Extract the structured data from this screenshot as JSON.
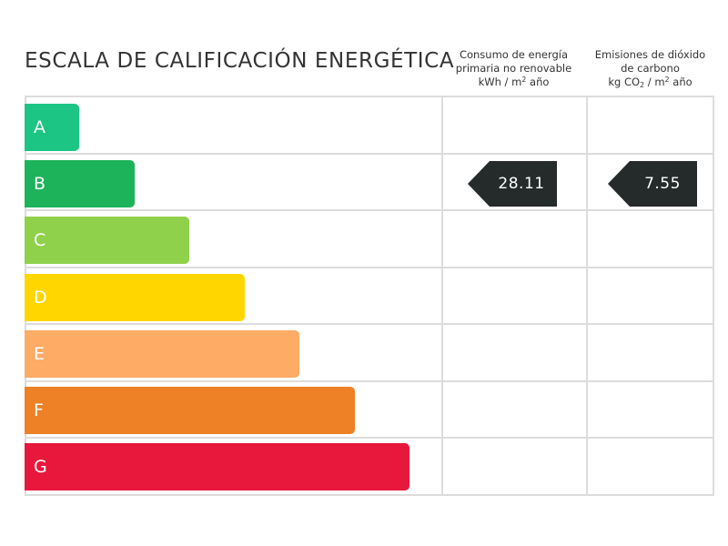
{
  "title": "ESCALA DE CALIFICACIÓN ENERGÉTICA",
  "columns": [
    {
      "line1": "Consumo de energía",
      "line2": "primaria no renovable",
      "unit_main": "kWh / m",
      "unit_sup": "2",
      "unit_tail": " año"
    },
    {
      "line1": "Emisiones de dióxido",
      "line2": "de carbono",
      "unit_main": "kg CO",
      "unit_sub": "2",
      "unit_mid": " / m",
      "unit_sup": "2",
      "unit_tail": " año"
    }
  ],
  "grades": [
    {
      "label": "A",
      "color": "#1cc584"
    },
    {
      "label": "B",
      "color": "#1db35a"
    },
    {
      "label": "C",
      "color": "#8fd14b"
    },
    {
      "label": "D",
      "color": "#ffd600"
    },
    {
      "label": "E",
      "color": "#fdab65"
    },
    {
      "label": "F",
      "color": "#ee8026"
    },
    {
      "label": "G",
      "color": "#e8173c"
    }
  ],
  "ratings": {
    "consumo": {
      "grade": "B",
      "value": "28.11"
    },
    "emisiones": {
      "grade": "B",
      "value": "7.55"
    }
  },
  "colors": {
    "grid": "#dcdcdc",
    "arrow": "#252a2b",
    "text": "#333333"
  }
}
